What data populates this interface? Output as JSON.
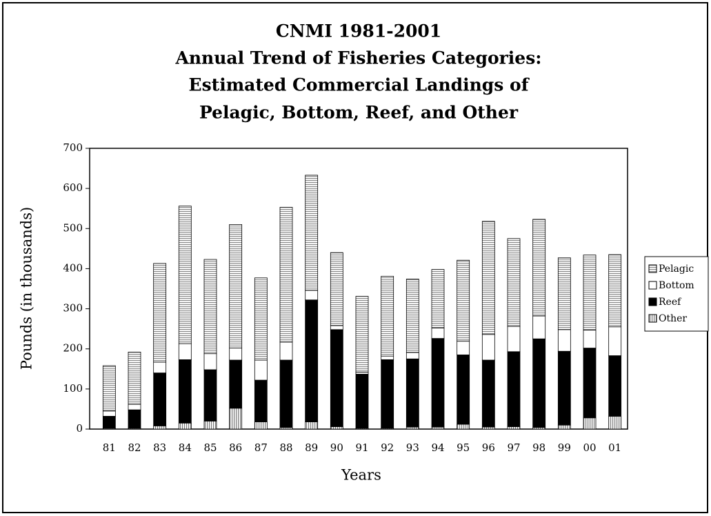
{
  "chart_data": {
    "type": "stacked_bar",
    "title": [
      "CNMI 1981-2001",
      "Annual Trend of Fisheries Categories:",
      "Estimated Commercial Landings of",
      "Pelagic, Bottom, Reef, and Other"
    ],
    "x_label": "Years",
    "y_label": "Pounds (in thousands)",
    "categories": [
      "81",
      "82",
      "83",
      "84",
      "85",
      "86",
      "87",
      "88",
      "89",
      "90",
      "91",
      "92",
      "93",
      "94",
      "95",
      "96",
      "97",
      "98",
      "99",
      "00",
      "01"
    ],
    "series": [
      {
        "name": "Pelagic",
        "color": "#888888",
        "pattern": "horizontal",
        "values": [
          113,
          130,
          246,
          343,
          235,
          308,
          205,
          336,
          287,
          182,
          189,
          199,
          183,
          146,
          202,
          282,
          219,
          241,
          179,
          187,
          180
        ]
      },
      {
        "name": "Bottom",
        "color": "#ffffff",
        "pattern": "solid",
        "values": [
          13,
          14,
          27,
          40,
          40,
          30,
          50,
          45,
          24,
          10,
          5,
          9,
          16,
          26,
          34,
          64,
          63,
          57,
          54,
          45,
          72
        ]
      },
      {
        "name": "Reef",
        "color": "#000000",
        "pattern": "solid",
        "values": [
          30,
          46,
          132,
          158,
          128,
          120,
          104,
          168,
          304,
          242,
          135,
          171,
          170,
          221,
          173,
          167,
          187,
          221,
          184,
          174,
          151
        ]
      },
      {
        "name": "Other",
        "color": "#777777",
        "pattern": "vertical",
        "values": [
          2,
          2,
          8,
          15,
          20,
          52,
          18,
          4,
          18,
          6,
          2,
          2,
          5,
          5,
          12,
          5,
          6,
          4,
          10,
          28,
          32
        ]
      }
    ],
    "ylim": [
      0,
      700
    ],
    "yticks": [
      0,
      100,
      200,
      300,
      400,
      500,
      600,
      700
    ],
    "legend": "right"
  }
}
